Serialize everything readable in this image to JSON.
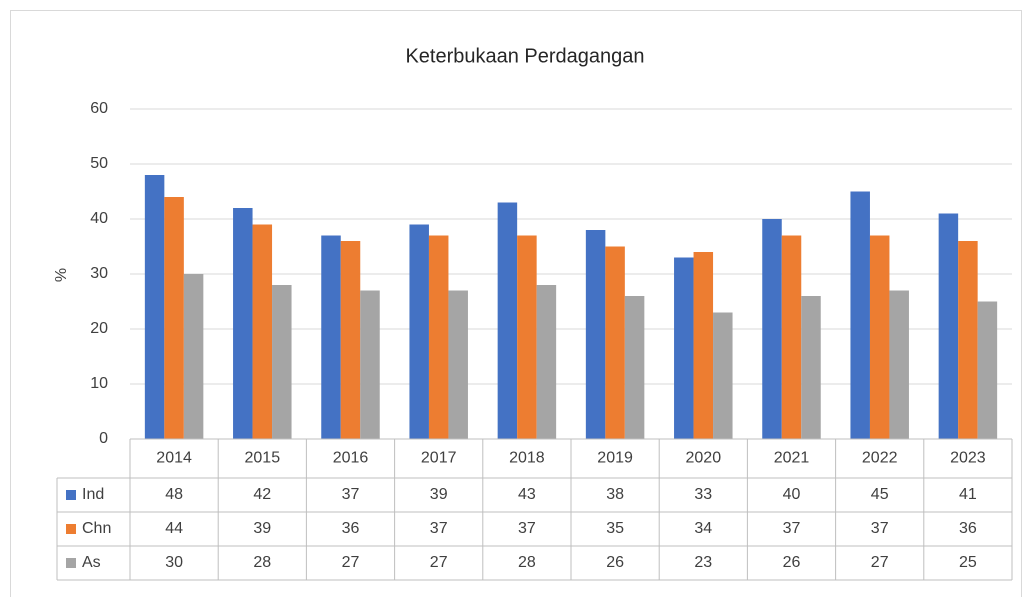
{
  "chart_data": {
    "type": "bar",
    "title": "Keterbukaan Perdagangan",
    "y_label": "%",
    "categories": [
      "2014",
      "2015",
      "2016",
      "2017",
      "2018",
      "2019",
      "2020",
      "2021",
      "2022",
      "2023"
    ],
    "series": [
      {
        "name": "Ind",
        "color": "#4472c4",
        "values": [
          48,
          42,
          37,
          39,
          43,
          38,
          33,
          40,
          45,
          41
        ]
      },
      {
        "name": "Chn",
        "color": "#ed7d31",
        "values": [
          44,
          39,
          36,
          37,
          37,
          35,
          34,
          37,
          37,
          36
        ]
      },
      {
        "name": "As",
        "color": "#a5a5a5",
        "values": [
          30,
          28,
          27,
          27,
          28,
          26,
          23,
          26,
          27,
          25
        ]
      }
    ],
    "ylim": [
      0,
      60
    ],
    "yticks": [
      0,
      10,
      20,
      30,
      40,
      50,
      60
    ],
    "grid": true,
    "data_table": true
  }
}
